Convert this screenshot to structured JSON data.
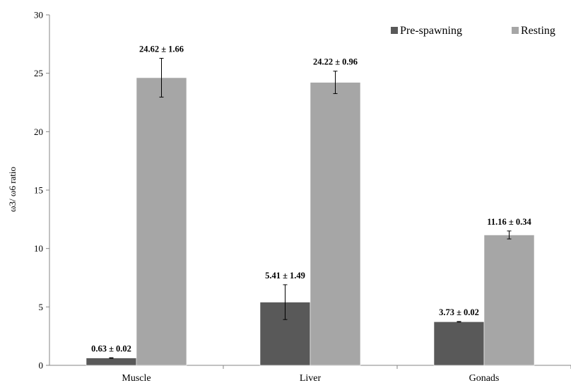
{
  "chart_data": {
    "type": "bar",
    "categories": [
      "Muscle",
      "Liver",
      "Gonads"
    ],
    "series": [
      {
        "name": "Pre-spawning",
        "color": "#595959",
        "values": [
          0.63,
          5.41,
          3.73
        ],
        "errors": [
          0.02,
          1.49,
          0.02
        ],
        "labels": [
          "0.63 ± 0.02",
          "5.41 ± 1.49",
          "3.73 ± 0.02"
        ]
      },
      {
        "name": "Resting",
        "color": "#a6a6a6",
        "values": [
          24.62,
          24.22,
          11.16
        ],
        "errors": [
          1.66,
          0.96,
          0.34
        ],
        "labels": [
          "24.62 ± 1.66",
          "24.22 ± 0.96",
          "11.16 ± 0.34"
        ]
      }
    ],
    "title": "",
    "xlabel": "",
    "ylabel": "ω3/ ω6 ratio",
    "ylim": [
      0,
      30
    ],
    "yticks": [
      0,
      5,
      10,
      15,
      20,
      25,
      30
    ],
    "grid": false,
    "legend": "top-right"
  }
}
